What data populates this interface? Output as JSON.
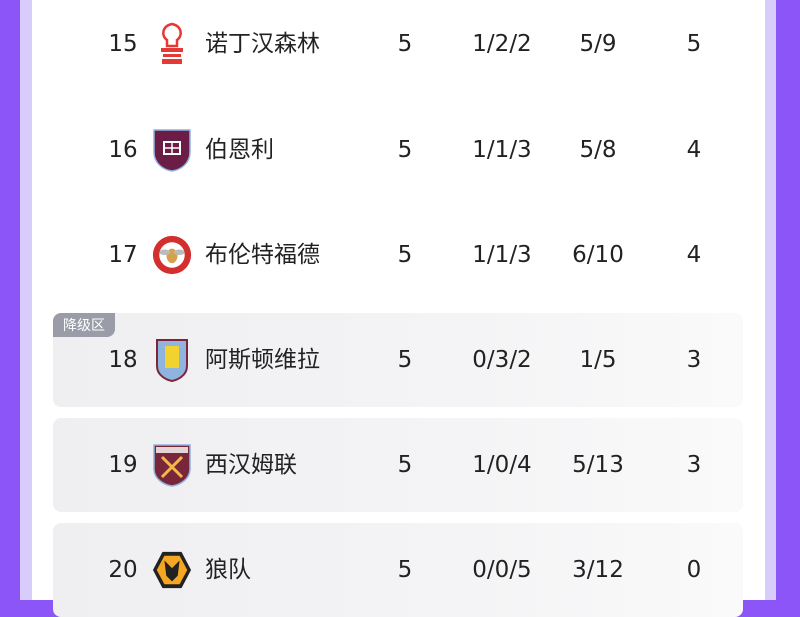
{
  "zone_label": "降级区",
  "rows": [
    {
      "rank": "15",
      "team": "诺丁汉森林",
      "played": "5",
      "wdl": "1/2/2",
      "goals": "5/9",
      "points": "5",
      "logo": "nottingham-forest-crest-icon",
      "color": "#e53935"
    },
    {
      "rank": "16",
      "team": "伯恩利",
      "played": "5",
      "wdl": "1/1/3",
      "goals": "5/8",
      "points": "4",
      "logo": "burnley-crest-icon",
      "color": "#6c1d45"
    },
    {
      "rank": "17",
      "team": "布伦特福德",
      "played": "5",
      "wdl": "1/1/3",
      "goals": "6/10",
      "points": "4",
      "logo": "brentford-crest-icon",
      "color": "#d32f2f"
    },
    {
      "rank": "18",
      "team": "阿斯顿维拉",
      "played": "5",
      "wdl": "0/3/2",
      "goals": "1/5",
      "points": "3",
      "logo": "aston-villa-crest-icon",
      "color": "#8fb4e0"
    },
    {
      "rank": "19",
      "team": "西汉姆联",
      "played": "5",
      "wdl": "1/0/4",
      "goals": "5/13",
      "points": "3",
      "logo": "west-ham-crest-icon",
      "color": "#7a263a"
    },
    {
      "rank": "20",
      "team": "狼队",
      "played": "5",
      "wdl": "0/0/5",
      "goals": "3/12",
      "points": "0",
      "logo": "wolves-crest-icon",
      "color": "#f5a623"
    }
  ]
}
